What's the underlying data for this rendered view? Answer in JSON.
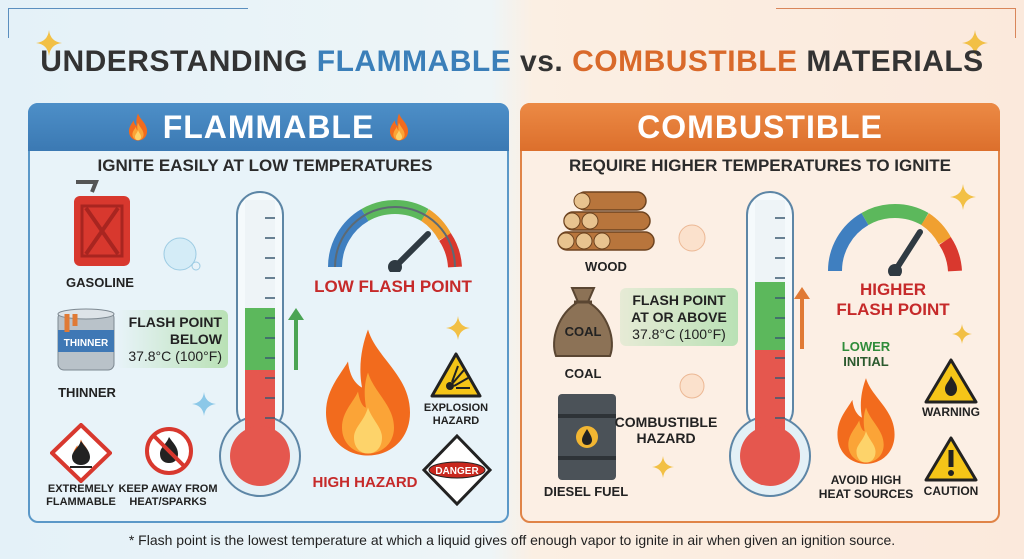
{
  "title": {
    "part1": "UNDERSTANDING ",
    "part2": "FLAMMABLE",
    "part3": " vs. ",
    "part4": "COMBUSTIBLE",
    "part5": " MATERIALS"
  },
  "colors": {
    "flammable": "#3b79b3",
    "combustible": "#dc6f2c",
    "danger": "#c62a2a",
    "safe": "#4caf50"
  },
  "flammable": {
    "header": "FLAMMABLE",
    "subtitle": "IGNITE EASILY AT LOW TEMPERATURES",
    "materials": [
      {
        "label": "GASOLINE",
        "icon": "gas-can-icon"
      },
      {
        "label": "THINNER",
        "icon": "paint-can-icon",
        "can_text": "THINNER"
      }
    ],
    "flash_point": {
      "line1": "FLASH POINT",
      "line2": "BELOW",
      "line3": "37.8°C (100°F)"
    },
    "gauge_label": "LOW FLASH POINT",
    "hazard_label": "HIGH HAZARD",
    "signs": [
      {
        "label1": "EXTREMELY",
        "label2": "FLAMMABLE"
      },
      {
        "label1": "KEEP AWAY FROM",
        "label2": "HEAT/SPARKS"
      },
      {
        "label1": "EXPLOSION",
        "label2": "HAZARD"
      },
      {
        "text": "DANGER"
      }
    ]
  },
  "combustible": {
    "header": "COMBUSTIBLE",
    "subtitle": "REQUIRE HIGHER TEMPERATURES TO IGNITE",
    "materials": [
      {
        "label": "WOOD",
        "icon": "logs-icon"
      },
      {
        "label": "COAL",
        "icon": "sack-icon",
        "sack_text": "COAL"
      },
      {
        "label": "DIESEL FUEL",
        "icon": "barrel-icon"
      }
    ],
    "flash_point": {
      "line1": "FLASH POINT",
      "line2": "AT OR ABOVE",
      "line3": "37.8°C (100°F)"
    },
    "hazard_label1": "COMBUSTIBLE",
    "hazard_label2": "HAZARD",
    "gauge_label1": "HIGHER",
    "gauge_label2": "FLASH POINT",
    "initial1": "LOWER",
    "initial2": "INITIAL",
    "avoid1": "AVOID HIGH",
    "avoid2": "HEAT SOURCES",
    "signs": [
      {
        "label": "WARNING"
      },
      {
        "label": "CAUTION"
      }
    ]
  },
  "footnote": "* Flash point is the lowest temperature at which a liquid gives off enough vapor to ignite in air when given an ignition source."
}
